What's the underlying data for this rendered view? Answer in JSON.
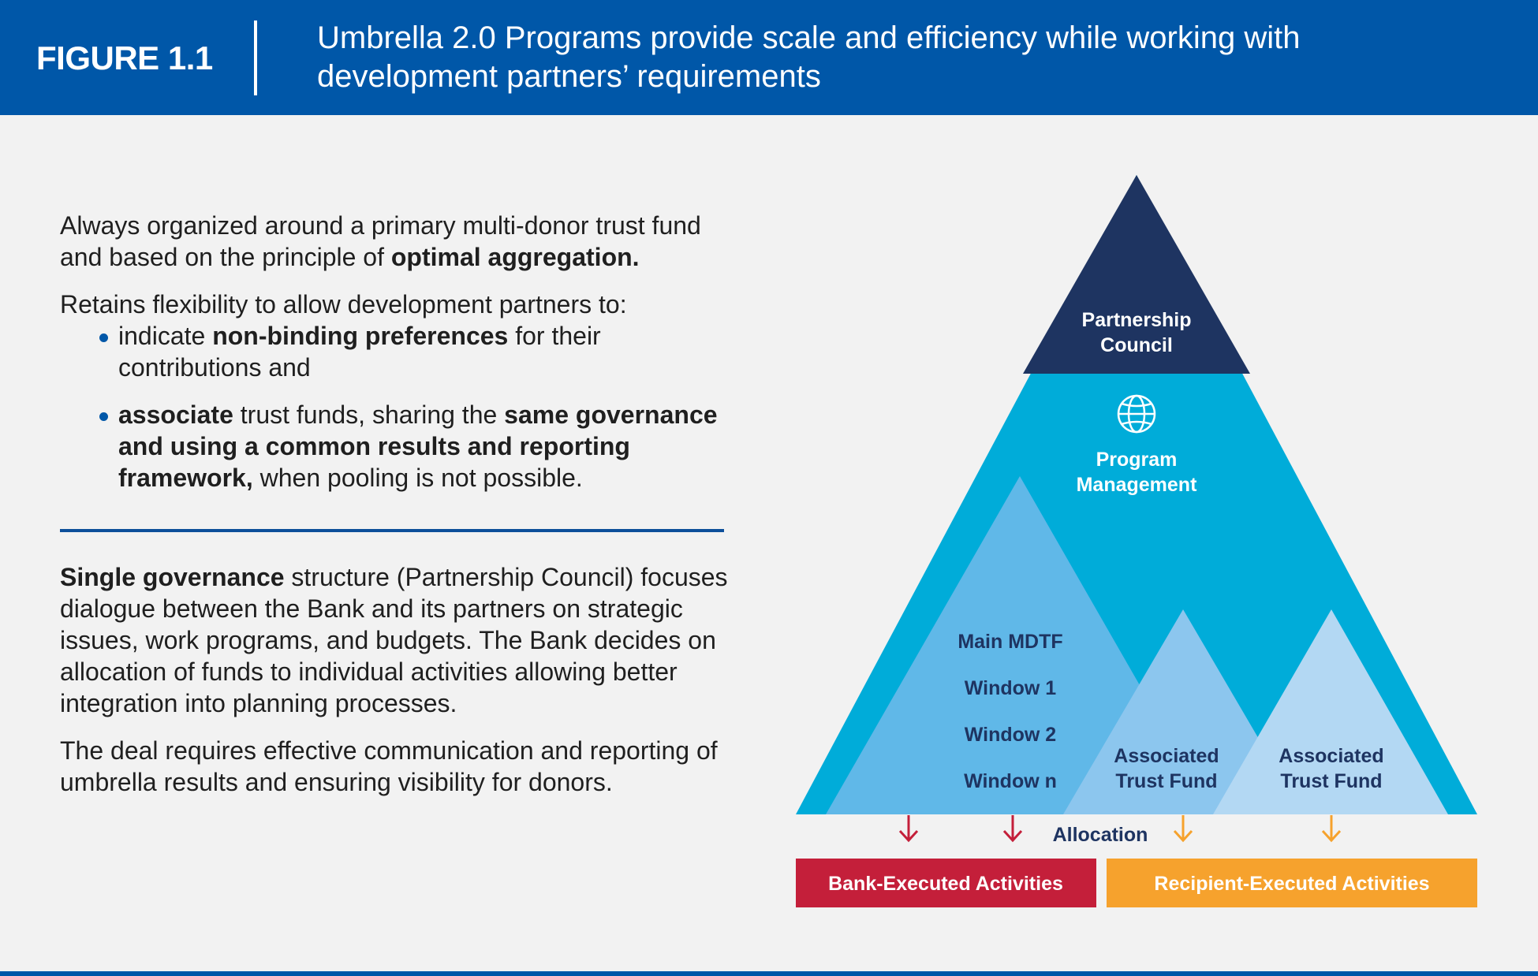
{
  "header": {
    "figure_label": "FIGURE 1.1",
    "title": "Umbrella 2.0 Programs provide scale and efficiency while working with development partners’ requirements"
  },
  "left_text": {
    "para1_pre": "Always organized around a primary multi-donor trust fund and based on the principle of ",
    "para1_bold": "optimal aggregation.",
    "para2": "Retains flexibility to allow development partners to:",
    "bullet1_pre": "indicate ",
    "bullet1_bold": "non-binding preferences",
    "bullet1_post": " for their contributions and",
    "bullet2_bold1": "associate",
    "bullet2_mid": " trust funds, sharing the ",
    "bullet2_bold2": "same governance and using a common results and reporting framework,",
    "bullet2_post": " when pooling is not possible.",
    "para3_bold": "Single governance",
    "para3_rest": " structure (Partnership Council) focuses dialogue between the Bank and its partners on strategic issues, work programs, and budgets. The Bank decides on allocation of funds to individual activities allowing better integration into planning processes.",
    "para4": "The deal requires effective communication and reporting of umbrella results and ensuring visibility for donors."
  },
  "diagram": {
    "apex_line1": "Partnership",
    "apex_line2": "Council",
    "pm_line1": "Program",
    "pm_line2": "Management",
    "globe_icon": "globe-icon",
    "mdtf_items": [
      "Main MDTF",
      "Window 1",
      "Window 2",
      "Window n"
    ],
    "assoc1_line1": "Associated",
    "assoc1_line2": "Trust Fund",
    "assoc2_line1": "Associated",
    "assoc2_line2": "Trust Fund",
    "allocation": "Allocation",
    "bank_box": "Bank-Executed Activities",
    "recipient_box": "Recipient-Executed Activities",
    "colors": {
      "header_blue": "#0057a8",
      "apex_navy": "#1e3461",
      "program_cyan": "#00acd9",
      "mdtf_blue": "#60b8e8",
      "assoc1_blue": "#8cc6ee",
      "assoc2_blue": "#b3d8f3",
      "bank_red": "#c41f3a",
      "recipient_orange": "#f6a22d",
      "label_navy": "#1e3461"
    }
  }
}
